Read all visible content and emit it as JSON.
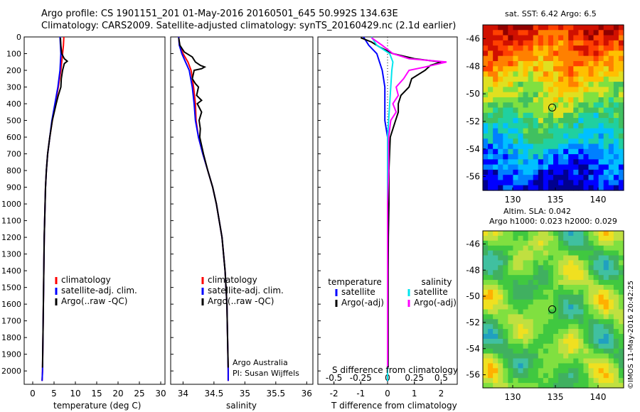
{
  "title_line1": "Argo profile: CS 1901151_201 01-May-2016 20160501_645 50.992S 134.63E",
  "title_line2": "Climatology: CARS2009. Satellite-adjusted climatology: synTS_20160429.nc (2.1d earlier)",
  "credit": "©IMOS 11-May-2016 20:42:25",
  "colors": {
    "climatology": "#ff0000",
    "satellite": "#0000ff",
    "argo": "#000000",
    "sat_salinity": "#00e5ee",
    "argo_salinity": "#ff00ff"
  },
  "chart_data": [
    {
      "type": "line",
      "name_panel": "temperature",
      "xlabel": "temperature (deg C)",
      "ylabel": "",
      "xlim": [
        -2,
        31
      ],
      "ylim": [
        2080,
        0
      ],
      "xticks": [
        0,
        5,
        10,
        15,
        20,
        25,
        30
      ],
      "yticks": [
        0,
        100,
        200,
        300,
        400,
        500,
        600,
        700,
        800,
        900,
        1000,
        1100,
        1200,
        1300,
        1400,
        1500,
        1600,
        1700,
        1800,
        1900,
        2000
      ],
      "legend": [
        "climatology",
        "satellite-adj. clim.",
        "Argo(..raw -QC)"
      ],
      "series": [
        {
          "name": "climatology",
          "depth": [
            0,
            50,
            100,
            150,
            200,
            300,
            400,
            500,
            600,
            700,
            800,
            900,
            1000,
            1200,
            1400,
            1600,
            1800,
            2000,
            2060
          ],
          "values": [
            7.3,
            7.2,
            7.0,
            6.8,
            6.6,
            6.0,
            5.3,
            4.6,
            4.0,
            3.5,
            3.2,
            3.0,
            2.9,
            2.7,
            2.6,
            2.5,
            2.4,
            2.3,
            2.2
          ]
        },
        {
          "name": "satellite-adj. clim.",
          "depth": [
            0,
            50,
            100,
            150,
            200,
            300,
            400,
            500,
            600,
            700,
            800,
            900,
            1000,
            1200,
            1400,
            1600,
            1800,
            2000,
            2060
          ],
          "values": [
            6.4,
            6.5,
            6.6,
            6.5,
            6.4,
            5.9,
            5.2,
            4.5,
            4.0,
            3.5,
            3.2,
            3.0,
            2.9,
            2.7,
            2.6,
            2.5,
            2.4,
            2.3,
            2.2
          ]
        },
        {
          "name": "Argo(..raw -QC)",
          "depth": [
            5,
            50,
            100,
            130,
            145,
            160,
            200,
            250,
            300,
            350,
            400,
            500,
            600,
            700,
            800,
            900,
            1000,
            1200,
            1400,
            1600,
            1800,
            1980
          ],
          "values": [
            6.5,
            6.6,
            6.8,
            7.4,
            8.1,
            7.4,
            7.0,
            6.7,
            6.6,
            6.0,
            5.5,
            4.6,
            4.0,
            3.5,
            3.2,
            3.0,
            2.9,
            2.7,
            2.6,
            2.5,
            2.4,
            2.3
          ]
        }
      ]
    },
    {
      "type": "line",
      "name_panel": "salinity",
      "xlabel": "salinity",
      "ylabel": "",
      "xlim": [
        33.8,
        36.1
      ],
      "ylim": [
        2080,
        0
      ],
      "xticks": [
        34,
        34.5,
        35,
        35.5,
        36
      ],
      "tick_labels": [
        "34",
        "34.5",
        "35",
        "35.5",
        "36"
      ],
      "legend": [
        "climatology",
        "satellite-adj. clim.",
        "Argo(..raw -QC)"
      ],
      "series": [
        {
          "name": "climatology",
          "depth": [
            0,
            50,
            100,
            150,
            200,
            300,
            400,
            500,
            600,
            700,
            800,
            900,
            1000,
            1200,
            1400,
            1600,
            1800,
            2000,
            2060
          ],
          "values": [
            33.93,
            33.94,
            34.0,
            34.08,
            34.13,
            34.17,
            34.2,
            34.21,
            34.25,
            34.32,
            34.4,
            34.48,
            34.54,
            34.63,
            34.68,
            34.71,
            34.72,
            34.73,
            34.73
          ]
        },
        {
          "name": "satellite-adj. clim.",
          "depth": [
            0,
            50,
            100,
            150,
            200,
            300,
            400,
            500,
            600,
            700,
            800,
            900,
            1000,
            1200,
            1400,
            1600,
            1800,
            2000,
            2060
          ],
          "values": [
            33.93,
            33.94,
            33.98,
            34.04,
            34.1,
            34.15,
            34.18,
            34.2,
            34.25,
            34.32,
            34.4,
            34.48,
            34.54,
            34.63,
            34.68,
            34.71,
            34.72,
            34.73,
            34.73
          ]
        },
        {
          "name": "Argo(..raw -QC)",
          "depth": [
            5,
            50,
            90,
            120,
            150,
            170,
            180,
            190,
            200,
            250,
            280,
            300,
            350,
            380,
            400,
            450,
            500,
            550,
            600,
            700,
            800,
            900,
            1000,
            1200,
            1400,
            1600,
            1800,
            1980
          ],
          "values": [
            33.93,
            33.95,
            34.02,
            34.15,
            34.2,
            34.28,
            34.35,
            34.3,
            34.18,
            34.15,
            34.2,
            34.25,
            34.22,
            34.3,
            34.23,
            34.3,
            34.26,
            34.28,
            34.27,
            34.33,
            34.4,
            34.48,
            34.54,
            34.63,
            34.68,
            34.71,
            34.72,
            34.73
          ]
        }
      ]
    },
    {
      "type": "line",
      "name_panel": "difference",
      "xlabel": "T difference from climatology",
      "ylabel": "",
      "xlim": [
        -2.6,
        2.6
      ],
      "ylim": [
        2080,
        0
      ],
      "xticks": [
        -2,
        -1,
        0,
        1,
        2
      ],
      "secondary_axis_label": "S difference from climatology",
      "secondary_ticks": [
        "-0.5",
        "-0.25",
        "0",
        "0.25",
        "0.5"
      ],
      "secondary_tick_values": [
        -0.5,
        -0.25,
        0,
        0.25,
        0.5
      ],
      "legend_temperature_title": "temperature",
      "legend_salinity_title": "salinity",
      "legend": [
        "satellite",
        "Argo(-adj)",
        "satellite",
        "Argo(-adj)"
      ],
      "series": [
        {
          "name": "satellite",
          "depth": [
            0,
            50,
            100,
            150,
            200,
            300,
            400,
            500,
            600,
            800,
            1000,
            1200,
            1400,
            1600,
            1800,
            2060
          ],
          "values": [
            -0.9,
            -0.7,
            -0.4,
            -0.3,
            -0.2,
            -0.1,
            -0.1,
            -0.1,
            0,
            0,
            0,
            0,
            0,
            0,
            0,
            0
          ]
        },
        {
          "name": "Argo(-adj)",
          "depth": [
            5,
            30,
            60,
            100,
            130,
            150,
            170,
            200,
            250,
            300,
            350,
            400,
            450,
            500,
            600,
            800,
            1000,
            1200,
            1400,
            1600,
            1800,
            1980
          ],
          "values": [
            -1.0,
            -0.6,
            -0.3,
            0.2,
            1.0,
            2.0,
            1.6,
            1.4,
            0.9,
            0.8,
            0.5,
            0.4,
            0.4,
            0.3,
            0.1,
            0.05,
            0.05,
            0.03,
            0.02,
            0.02,
            0.02,
            0.02
          ]
        },
        {
          "name": "satellite",
          "depth": [
            0,
            50,
            100,
            150,
            200,
            300,
            400,
            500,
            600,
            800,
            1000,
            1200,
            1400,
            1600,
            1800,
            2060
          ],
          "values": [
            -0.15,
            -0.1,
            0.02,
            0.05,
            0.04,
            0.03,
            0.02,
            0.01,
            0,
            0,
            0,
            0,
            0,
            0,
            0,
            0
          ]
        },
        {
          "name": "Argo(-adj)",
          "depth": [
            5,
            50,
            100,
            130,
            150,
            180,
            200,
            250,
            300,
            350,
            400,
            450,
            500,
            600,
            800,
            1000,
            1200,
            1400,
            1600,
            1800,
            1980
          ],
          "values": [
            -0.15,
            -0.05,
            0.05,
            0.2,
            0.55,
            0.35,
            0.2,
            0.15,
            0.08,
            0.1,
            0.05,
            0.08,
            0.03,
            0.01,
            0.01,
            0.0,
            0.0,
            0.0,
            0.0,
            0.0,
            0.0
          ]
        }
      ]
    },
    {
      "type": "heatmap",
      "name_panel": "sst-map",
      "title": "sat. SST: 6.42 Argo: 6.5",
      "xlim": [
        126.5,
        143
      ],
      "ylim": [
        -57,
        -45
      ],
      "xticks": [
        130,
        135,
        140
      ],
      "yticks": [
        -46,
        -48,
        -50,
        -52,
        -54,
        -56
      ],
      "marker": {
        "lon": 134.63,
        "lat": -50.992
      }
    },
    {
      "type": "heatmap",
      "name_panel": "sla-map",
      "title": "Altim. SLA: 0.042",
      "subtitle": "Argo h1000: 0.023 h2000: 0.029",
      "xlim": [
        126.5,
        143
      ],
      "ylim": [
        -57,
        -45
      ],
      "xticks": [
        130,
        135,
        140
      ],
      "yticks": [
        -46,
        -48,
        -50,
        -52,
        -54,
        -56
      ],
      "marker": {
        "lon": 134.63,
        "lat": -50.992
      }
    }
  ],
  "labels": {
    "argo_australia": "Argo Australia",
    "pi": "PI: Susan Wijffels"
  }
}
